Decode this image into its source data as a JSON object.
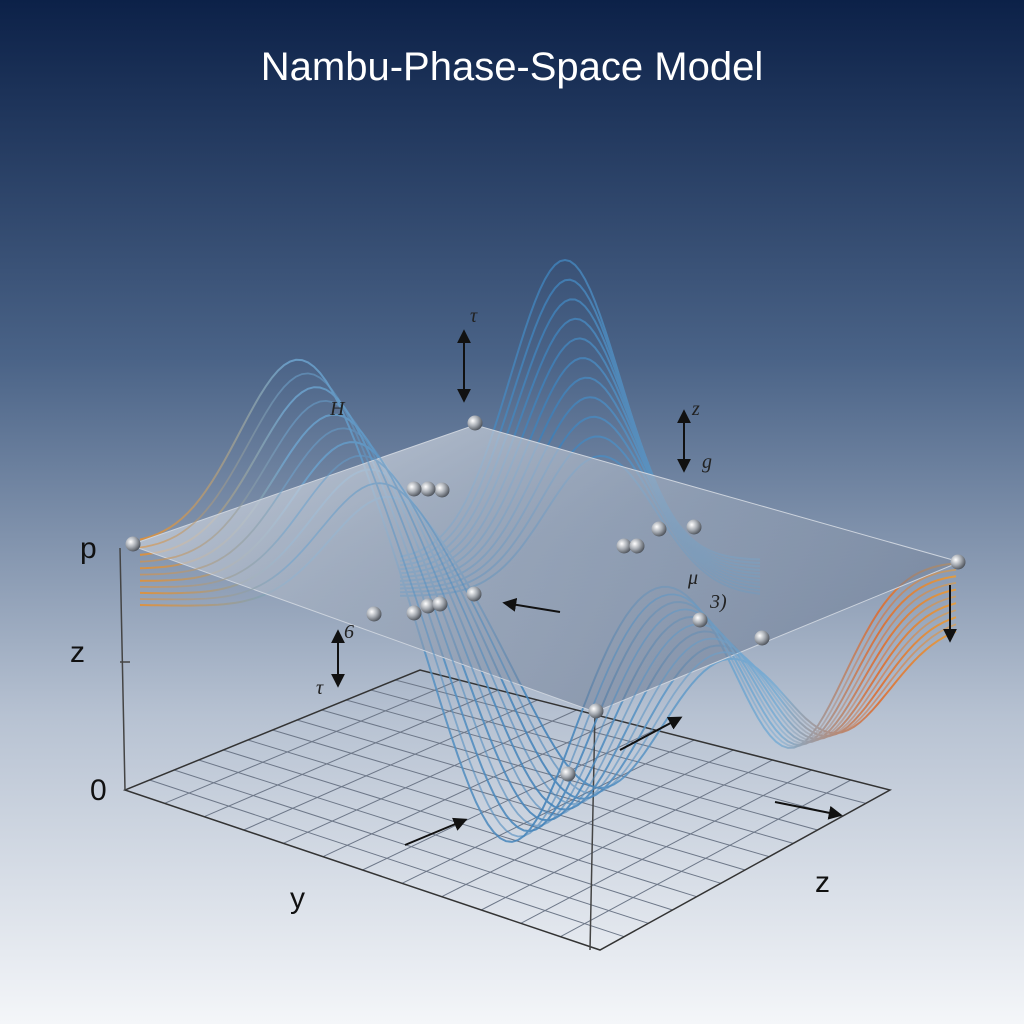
{
  "title": "Nambu-Phase-Space Model",
  "axes": {
    "p": "p",
    "z_vertical": "z",
    "origin": "0",
    "y": "y",
    "z_depth": "z"
  },
  "annotations": {
    "tau_top": "τ",
    "h": "H",
    "z_right": "z",
    "g": "g",
    "mu": "μ",
    "three": "3)",
    "six": "6",
    "tau_left": "τ"
  }
}
